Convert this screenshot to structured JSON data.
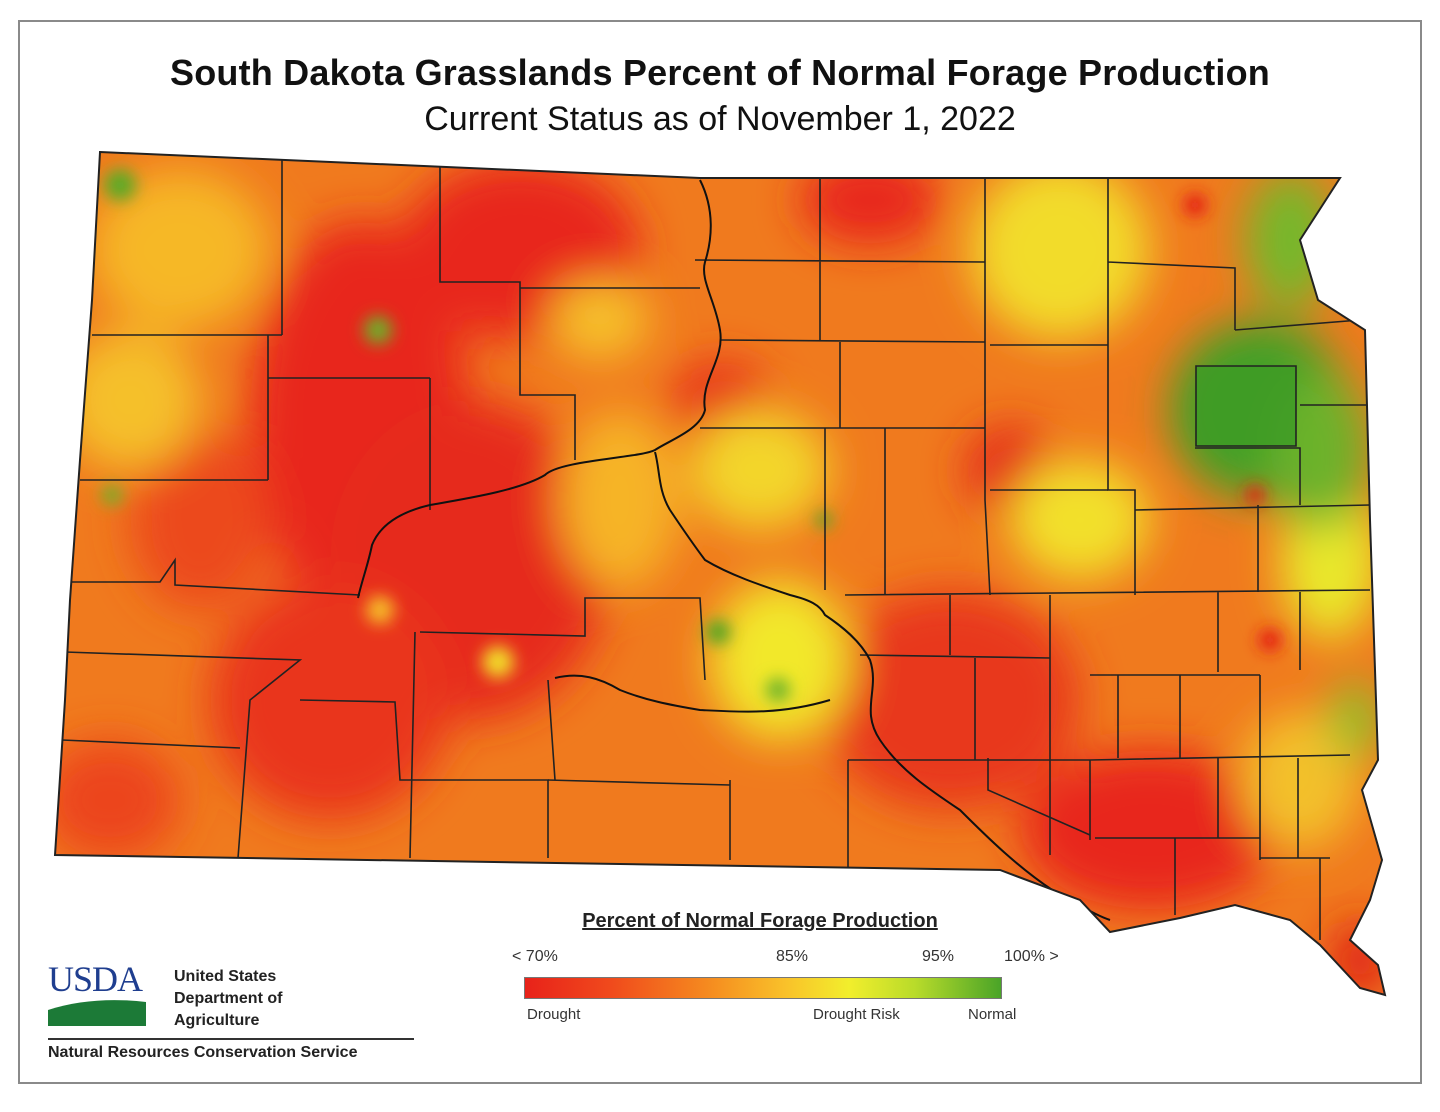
{
  "title": "South Dakota Grasslands Percent of Normal Forage Production",
  "subtitle": "Current Status as of November 1, 2022",
  "legend": {
    "title": "Percent of Normal Forage Production",
    "ticks": [
      "< 70%",
      "85%",
      "95%",
      "100% >"
    ],
    "categories": [
      "Drought",
      "Drought Risk",
      "Normal"
    ],
    "colors": [
      "#e8221a",
      "#f5891f",
      "#f9c22a",
      "#f2ee2c",
      "#b8db2a",
      "#4aa428"
    ]
  },
  "agency": {
    "logo_text": "USDA",
    "department": "United States\nDepartment of\nAgriculture",
    "service": "Natural Resources Conservation Service"
  }
}
